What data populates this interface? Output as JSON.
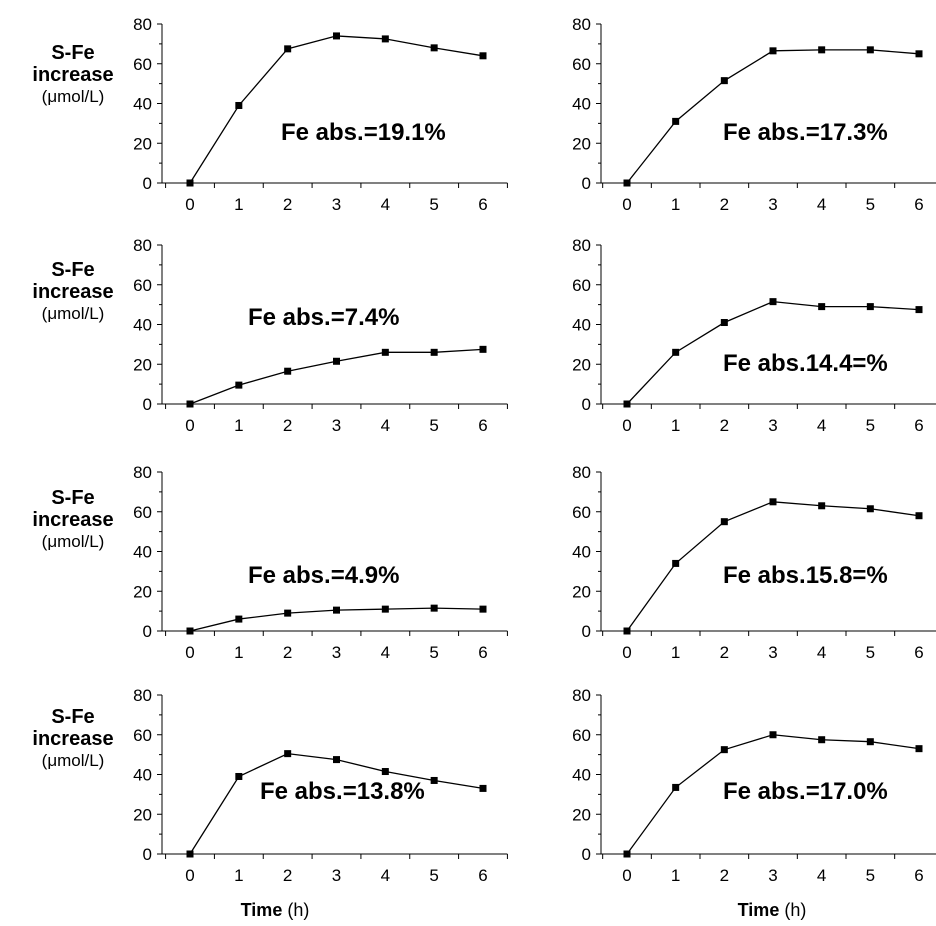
{
  "y_axis_label": {
    "line1": "S-Fe",
    "line2": "increase",
    "line3": "(μmol/L)"
  },
  "x_axis_title": {
    "bold": "Time",
    "unit": "(h)"
  },
  "chart_data": [
    {
      "type": "line",
      "annotation": "Fe abs.=19.1%",
      "x": [
        0,
        1,
        2,
        3,
        4,
        5,
        6
      ],
      "y": [
        0,
        39,
        67.5,
        74,
        72.5,
        68,
        64
      ],
      "ylim": [
        0,
        80
      ],
      "yticks": [
        0,
        20,
        40,
        60,
        80
      ]
    },
    {
      "type": "line",
      "annotation": "Fe abs.=17.3%",
      "x": [
        0,
        1,
        2,
        3,
        4,
        5,
        6
      ],
      "y": [
        0,
        31,
        51.5,
        66.5,
        67,
        67,
        65
      ],
      "ylim": [
        0,
        80
      ],
      "yticks": [
        0,
        20,
        40,
        60,
        80
      ]
    },
    {
      "type": "line",
      "annotation": "Fe abs.=7.4%",
      "x": [
        0,
        1,
        2,
        3,
        4,
        5,
        6
      ],
      "y": [
        0,
        9.5,
        16.5,
        21.5,
        26,
        26,
        27.5
      ],
      "ylim": [
        0,
        80
      ],
      "yticks": [
        0,
        20,
        40,
        60,
        80
      ]
    },
    {
      "type": "line",
      "annotation": "Fe abs.14.4=%",
      "x": [
        0,
        1,
        2,
        3,
        4,
        5,
        6
      ],
      "y": [
        0,
        26,
        41,
        51.5,
        49,
        49,
        47.5
      ],
      "ylim": [
        0,
        80
      ],
      "yticks": [
        0,
        20,
        40,
        60,
        80
      ]
    },
    {
      "type": "line",
      "annotation": "Fe abs.=4.9%",
      "x": [
        0,
        1,
        2,
        3,
        4,
        5,
        6
      ],
      "y": [
        0,
        6,
        9,
        10.5,
        11,
        11.5,
        11
      ],
      "ylim": [
        0,
        80
      ],
      "yticks": [
        0,
        20,
        40,
        60,
        80
      ]
    },
    {
      "type": "line",
      "annotation": "Fe abs.15.8=%",
      "x": [
        0,
        1,
        2,
        3,
        4,
        5,
        6
      ],
      "y": [
        0,
        34,
        55,
        65,
        63,
        61.5,
        58
      ],
      "ylim": [
        0,
        80
      ],
      "yticks": [
        0,
        20,
        40,
        60,
        80
      ]
    },
    {
      "type": "line",
      "annotation": "Fe abs.=13.8%",
      "x": [
        0,
        1,
        2,
        3,
        4,
        5,
        6
      ],
      "y": [
        0,
        39,
        50.5,
        47.5,
        41.5,
        37,
        33
      ],
      "ylim": [
        0,
        80
      ],
      "yticks": [
        0,
        20,
        40,
        60,
        80
      ]
    },
    {
      "type": "line",
      "annotation": "Fe abs.=17.0%",
      "x": [
        0,
        1,
        2,
        3,
        4,
        5,
        6
      ],
      "y": [
        0,
        33.5,
        52.5,
        60,
        57.5,
        56.5,
        53
      ],
      "ylim": [
        0,
        80
      ],
      "yticks": [
        0,
        20,
        40,
        60,
        80
      ]
    }
  ]
}
